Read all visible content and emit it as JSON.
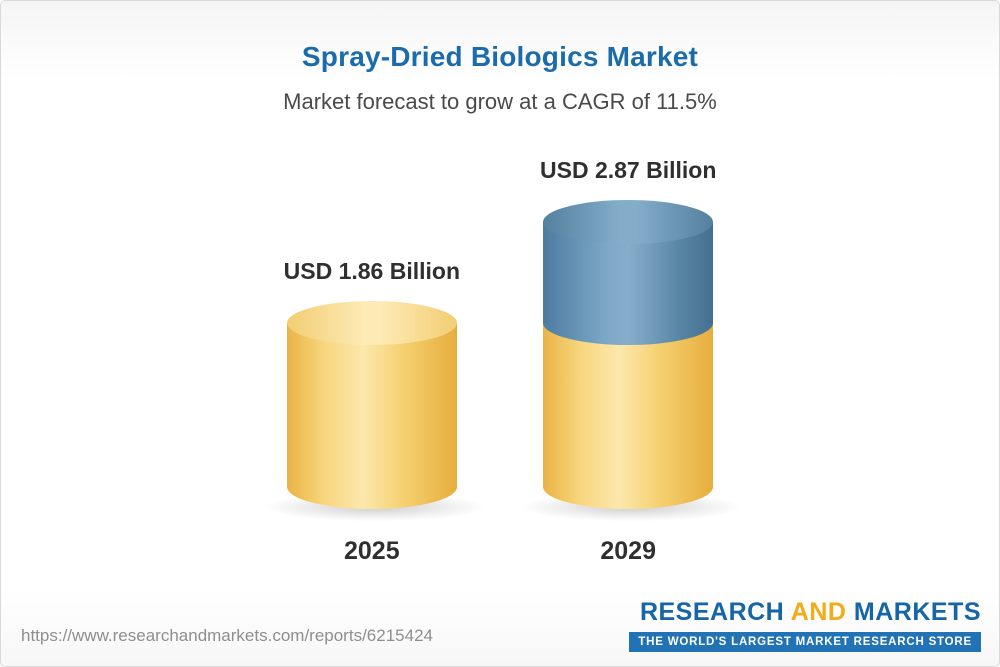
{
  "header": {
    "title": "Spray-Dried Biologics Market",
    "subtitle": "Market forecast to grow at a CAGR of 11.5%"
  },
  "chart_data": {
    "type": "bar",
    "title": "Spray-Dried Biologics Market",
    "subtitle": "Market forecast to grow at a CAGR of 11.5%",
    "cagr_percent": 11.5,
    "categories": [
      "2025",
      "2029"
    ],
    "values": [
      1.86,
      2.87
    ],
    "value_labels": [
      "USD 1.86 Billion",
      "USD 2.87 Billion"
    ],
    "unit": "USD Billion",
    "ylim": [
      0,
      3
    ],
    "grid": false,
    "legend": "none",
    "colors": {
      "base_segment": "#F5CE6D",
      "growth_segment": "#5D89A9",
      "title_text": "#1C6CAB"
    }
  },
  "footer": {
    "url": "https://www.researchandmarkets.com/reports/6215424",
    "logo": {
      "research": "RESEARCH",
      "and": "AND",
      "markets": "MARKETS",
      "tagline": "THE WORLD'S LARGEST MARKET RESEARCH STORE"
    }
  }
}
